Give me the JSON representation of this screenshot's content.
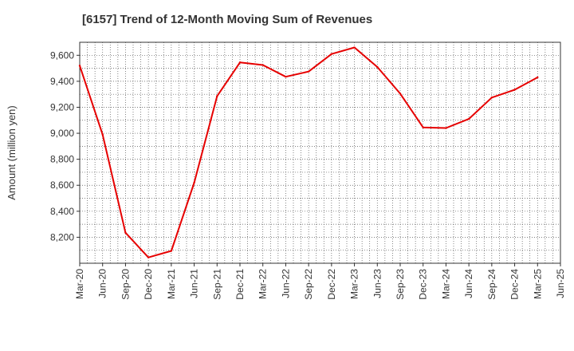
{
  "chart_data": {
    "type": "line",
    "title": "[6157]  Trend of 12-Month Moving Sum of Revenues",
    "xlabel": "",
    "ylabel": "Amount (million yen)",
    "ylim": [
      8000,
      9700
    ],
    "yticks": [
      8200,
      8400,
      8600,
      8800,
      9000,
      9200,
      9400,
      9600
    ],
    "ytick_labels": [
      "8,200",
      "8,400",
      "8,600",
      "8,800",
      "9,000",
      "9,200",
      "9,400",
      "9,600"
    ],
    "x_tick_labels": [
      "Mar-20",
      "Jun-20",
      "Sep-20",
      "Dec-20",
      "Mar-21",
      "Jun-21",
      "Sep-21",
      "Dec-21",
      "Mar-22",
      "Jun-22",
      "Sep-22",
      "Dec-22",
      "Mar-23",
      "Jun-23",
      "Sep-23",
      "Dec-23",
      "Mar-24",
      "Jun-24",
      "Sep-24",
      "Dec-24",
      "Mar-25",
      "Jun-25"
    ],
    "grid": true,
    "series": [
      {
        "name": "",
        "color": "#e60000",
        "x": [
          "Mar-20",
          "Jun-20",
          "Sep-20",
          "Dec-20",
          "Mar-21",
          "Jun-21",
          "Sep-21",
          "Dec-21",
          "Mar-22",
          "Jun-22",
          "Sep-22",
          "Dec-22",
          "Mar-23",
          "Jun-23",
          "Sep-23",
          "Dec-23",
          "Mar-24",
          "Jun-24",
          "Sep-24",
          "Dec-24",
          "Mar-25"
        ],
        "values": [
          9520,
          8990,
          8235,
          8045,
          8095,
          8620,
          9285,
          9545,
          9525,
          9435,
          9475,
          9610,
          9660,
          9510,
          9305,
          9045,
          9040,
          9110,
          9275,
          9335,
          9430
        ]
      }
    ]
  }
}
